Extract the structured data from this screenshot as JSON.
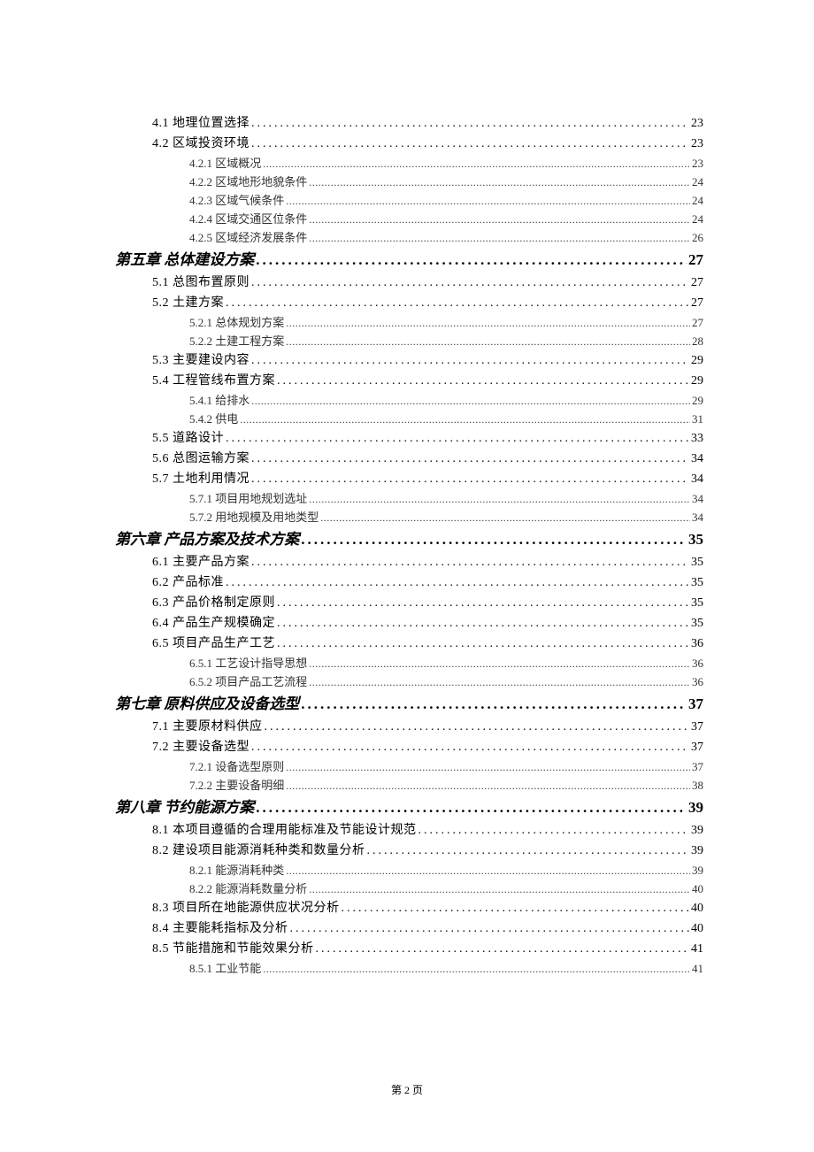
{
  "page_footer": "第 2 页",
  "styles": {
    "body_bg": "#ffffff",
    "text_color": "#000000",
    "level2_color": "#333333",
    "chapter_fontsize": 17,
    "level1_fontsize": 14,
    "level2_fontsize": 13,
    "chapter_font": "KaiTi",
    "body_font": "SimSun",
    "level1_indent": 42,
    "level2_indent": 84
  },
  "toc": [
    {
      "level": 1,
      "label": "4.1 地理位置选择",
      "page": "23"
    },
    {
      "level": 1,
      "label": "4.2 区域投资环境",
      "page": "23"
    },
    {
      "level": 2,
      "label": "4.2.1 区域概况",
      "page": "23"
    },
    {
      "level": 2,
      "label": "4.2.2 区域地形地貌条件",
      "page": "24"
    },
    {
      "level": 2,
      "label": "4.2.3 区域气候条件",
      "page": "24"
    },
    {
      "level": 2,
      "label": "4.2.4 区域交通区位条件",
      "page": "24"
    },
    {
      "level": 2,
      "label": "4.2.5 区域经济发展条件",
      "page": "26"
    },
    {
      "level": 0,
      "label": "第五章 总体建设方案",
      "page": "27"
    },
    {
      "level": 1,
      "label": "5.1 总图布置原则",
      "page": "27"
    },
    {
      "level": 1,
      "label": "5.2 土建方案",
      "page": "27"
    },
    {
      "level": 2,
      "label": "5.2.1 总体规划方案",
      "page": "27"
    },
    {
      "level": 2,
      "label": "5.2.2 土建工程方案",
      "page": "28"
    },
    {
      "level": 1,
      "label": "5.3 主要建设内容",
      "page": "29"
    },
    {
      "level": 1,
      "label": "5.4 工程管线布置方案",
      "page": "29"
    },
    {
      "level": 2,
      "label": "5.4.1 给排水",
      "page": "29"
    },
    {
      "level": 2,
      "label": "5.4.2 供电",
      "page": "31"
    },
    {
      "level": 1,
      "label": "5.5 道路设计",
      "page": "33"
    },
    {
      "level": 1,
      "label": "5.6 总图运输方案",
      "page": "34"
    },
    {
      "level": 1,
      "label": "5.7 土地利用情况",
      "page": "34"
    },
    {
      "level": 2,
      "label": "5.7.1 项目用地规划选址",
      "page": "34"
    },
    {
      "level": 2,
      "label": "5.7.2 用地规模及用地类型",
      "page": "34"
    },
    {
      "level": 0,
      "label": "第六章 产品方案及技术方案",
      "page": "35"
    },
    {
      "level": 1,
      "label": "6.1 主要产品方案",
      "page": "35"
    },
    {
      "level": 1,
      "label": "6.2 产品标准",
      "page": "35"
    },
    {
      "level": 1,
      "label": "6.3 产品价格制定原则",
      "page": "35"
    },
    {
      "level": 1,
      "label": "6.4 产品生产规模确定",
      "page": "35"
    },
    {
      "level": 1,
      "label": "6.5 项目产品生产工艺",
      "page": "36"
    },
    {
      "level": 2,
      "label": "6.5.1 工艺设计指导思想",
      "page": "36"
    },
    {
      "level": 2,
      "label": "6.5.2 项目产品工艺流程",
      "page": "36"
    },
    {
      "level": 0,
      "label": "第七章 原料供应及设备选型",
      "page": "37"
    },
    {
      "level": 1,
      "label": "7.1 主要原材料供应",
      "page": "37"
    },
    {
      "level": 1,
      "label": "7.2 主要设备选型",
      "page": "37"
    },
    {
      "level": 2,
      "label": "7.2.1 设备选型原则",
      "page": "37"
    },
    {
      "level": 2,
      "label": "7.2.2 主要设备明细",
      "page": "38"
    },
    {
      "level": 0,
      "label": "第八章 节约能源方案",
      "page": "39"
    },
    {
      "level": 1,
      "label": "8.1 本项目遵循的合理用能标准及节能设计规范",
      "page": "39"
    },
    {
      "level": 1,
      "label": "8.2 建设项目能源消耗种类和数量分析",
      "page": "39"
    },
    {
      "level": 2,
      "label": "8.2.1 能源消耗种类",
      "page": "39"
    },
    {
      "level": 2,
      "label": "8.2.2 能源消耗数量分析",
      "page": "40"
    },
    {
      "level": 1,
      "label": "8.3 项目所在地能源供应状况分析",
      "page": "40"
    },
    {
      "level": 1,
      "label": "8.4 主要能耗指标及分析",
      "page": "40"
    },
    {
      "level": 1,
      "label": "8.5 节能措施和节能效果分析",
      "page": "41"
    },
    {
      "level": 2,
      "label": "8.5.1 工业节能",
      "page": "41"
    }
  ]
}
